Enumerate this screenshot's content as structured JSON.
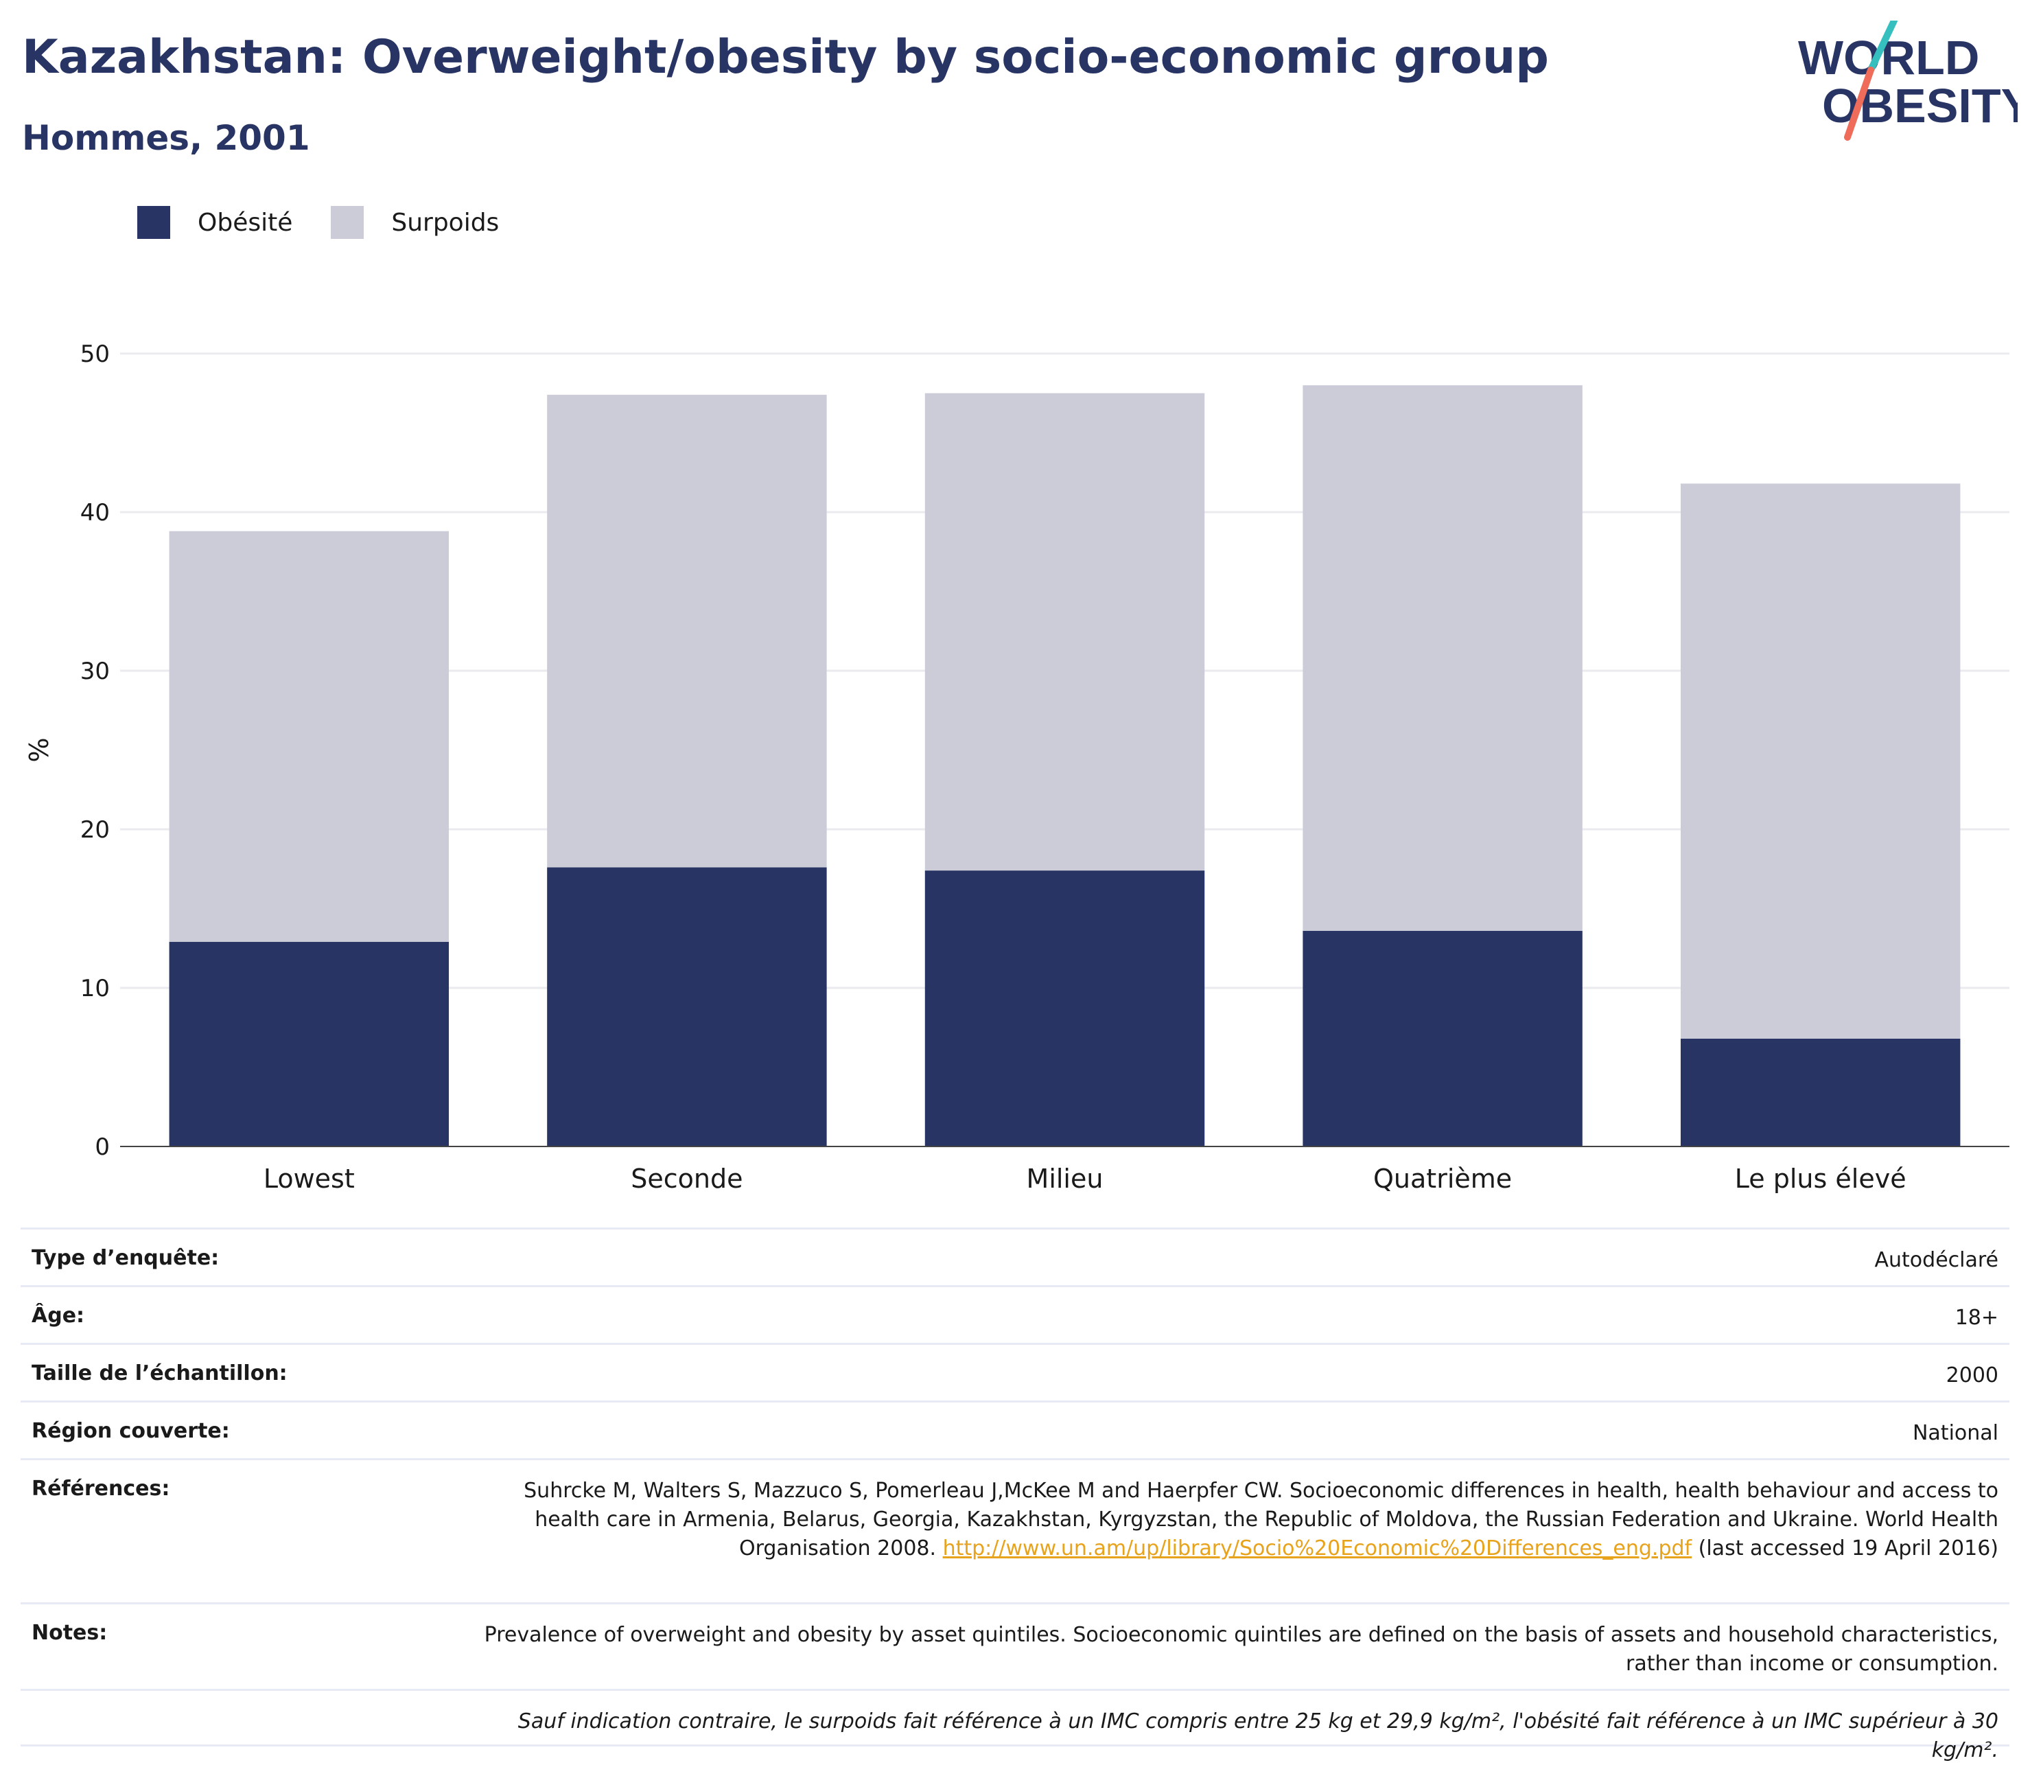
{
  "header": {
    "title": "Kazakhstan: Overweight/obesity by socio-economic group",
    "subtitle": "Hommes, 2001"
  },
  "logo": {
    "line1": "WORLD",
    "line2": "OBESITY",
    "colors": {
      "text": "#283564",
      "slash_top": "#35bfbf",
      "slash_bottom": "#ef6b5a"
    }
  },
  "legend": [
    {
      "label": "Obésité",
      "color": "#283564"
    },
    {
      "label": "Surpoids",
      "color": "#cbccd8"
    }
  ],
  "chart_data": {
    "type": "bar",
    "stacked": true,
    "categories": [
      "Lowest",
      "Seconde",
      "Milieu",
      "Quatrième",
      "Le plus élevé"
    ],
    "series": [
      {
        "name": "Obésité",
        "color": "#283564",
        "values": [
          12.9,
          17.6,
          17.4,
          13.6,
          6.8
        ]
      },
      {
        "name": "Surpoids",
        "color": "#cbccd8",
        "values": [
          25.9,
          29.8,
          30.1,
          34.4,
          35.0
        ]
      }
    ],
    "ylabel": "%",
    "xlabel": "",
    "ylim": [
      0,
      50
    ],
    "yticks": [
      0,
      10,
      20,
      30,
      40,
      50
    ],
    "grid": true,
    "legend_position": "top-left"
  },
  "meta": {
    "survey_type": {
      "label": "Type d’enquête:",
      "value": "Autodéclaré"
    },
    "age": {
      "label": "Âge:",
      "value": "18+"
    },
    "sample_size": {
      "label": "Taille de l’échantillon:",
      "value": "2000"
    },
    "region": {
      "label": "Région couverte:",
      "value": "National"
    },
    "references": {
      "label": "Références:",
      "text_before": "Suhrcke M, Walters S, Mazzuco S, Pomerleau J,McKee M and Haerpfer CW. Socioeconomic differences in health, health behaviour and access to health care in Armenia, Belarus, Georgia, Kazakhstan, Kyrgyzstan, the Republic of Moldova, the Russian Federation and Ukraine. World Health Organisation 2008. ",
      "link": "http://www.un.am/up/library/Socio%20Economic%20Differences_eng.pdf",
      "text_after": " (last accessed 19 April 2016)"
    },
    "notes": {
      "label": "Notes:",
      "value": "Prevalence of overweight and obesity by asset quintiles. Socioeconomic quintiles are defined on the basis of assets and household characteristics, rather than income or consumption."
    },
    "footnote": "Sauf indication contraire, le surpoids fait référence à un IMC compris entre 25 kg et 29,9 kg/m², l'obésité fait référence à un IMC supérieur à 30 kg/m²."
  }
}
